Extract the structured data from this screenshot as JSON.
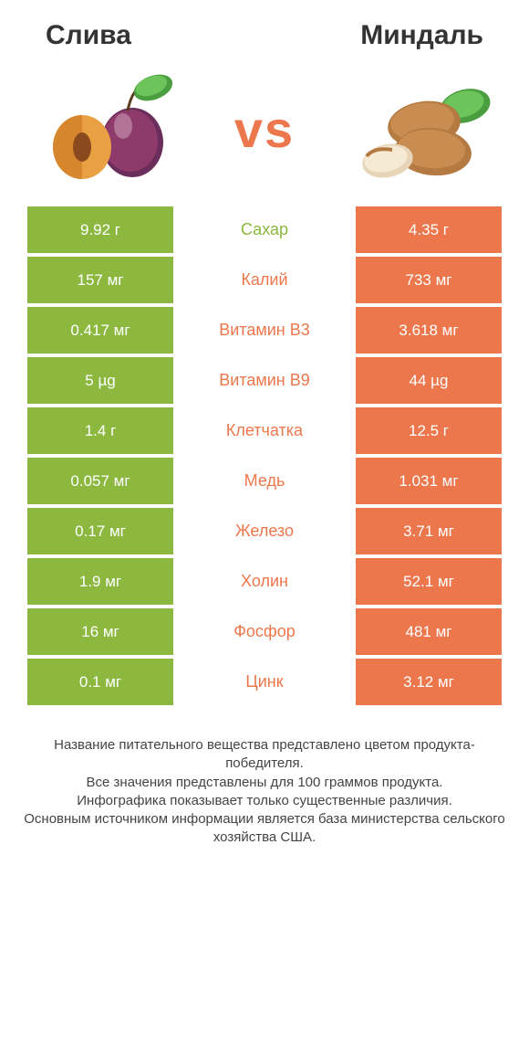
{
  "colors": {
    "left": "#8cb83f",
    "right": "#ed774c",
    "vs": "#ed774c",
    "title": "#333333",
    "label_left": "#8cb83f",
    "label_right": "#ed774c"
  },
  "header": {
    "left_title": "Слива",
    "right_title": "Миндаль",
    "vs_text": "vs"
  },
  "rows": [
    {
      "left": "9.92 г",
      "label": "Сахар",
      "right": "4.35 г",
      "winner": "left"
    },
    {
      "left": "157 мг",
      "label": "Калий",
      "right": "733 мг",
      "winner": "right"
    },
    {
      "left": "0.417 мг",
      "label": "Витамин B3",
      "right": "3.618 мг",
      "winner": "right"
    },
    {
      "left": "5 µg",
      "label": "Витамин B9",
      "right": "44 µg",
      "winner": "right"
    },
    {
      "left": "1.4 г",
      "label": "Клетчатка",
      "right": "12.5 г",
      "winner": "right"
    },
    {
      "left": "0.057 мг",
      "label": "Медь",
      "right": "1.031 мг",
      "winner": "right"
    },
    {
      "left": "0.17 мг",
      "label": "Железо",
      "right": "3.71 мг",
      "winner": "right"
    },
    {
      "left": "1.9 мг",
      "label": "Холин",
      "right": "52.1 мг",
      "winner": "right"
    },
    {
      "left": "16 мг",
      "label": "Фосфор",
      "right": "481 мг",
      "winner": "right"
    },
    {
      "left": "0.1 мг",
      "label": "Цинк",
      "right": "3.12 мг",
      "winner": "right"
    }
  ],
  "footer": {
    "text": "Название питательного вещества представлено цветом продукта-победителя.\nВсе значения представлены для 100 граммов продукта.\nИнфографика показывает только существенные различия.\nОсновным источником информации является база министерства сельского хозяйства США."
  }
}
